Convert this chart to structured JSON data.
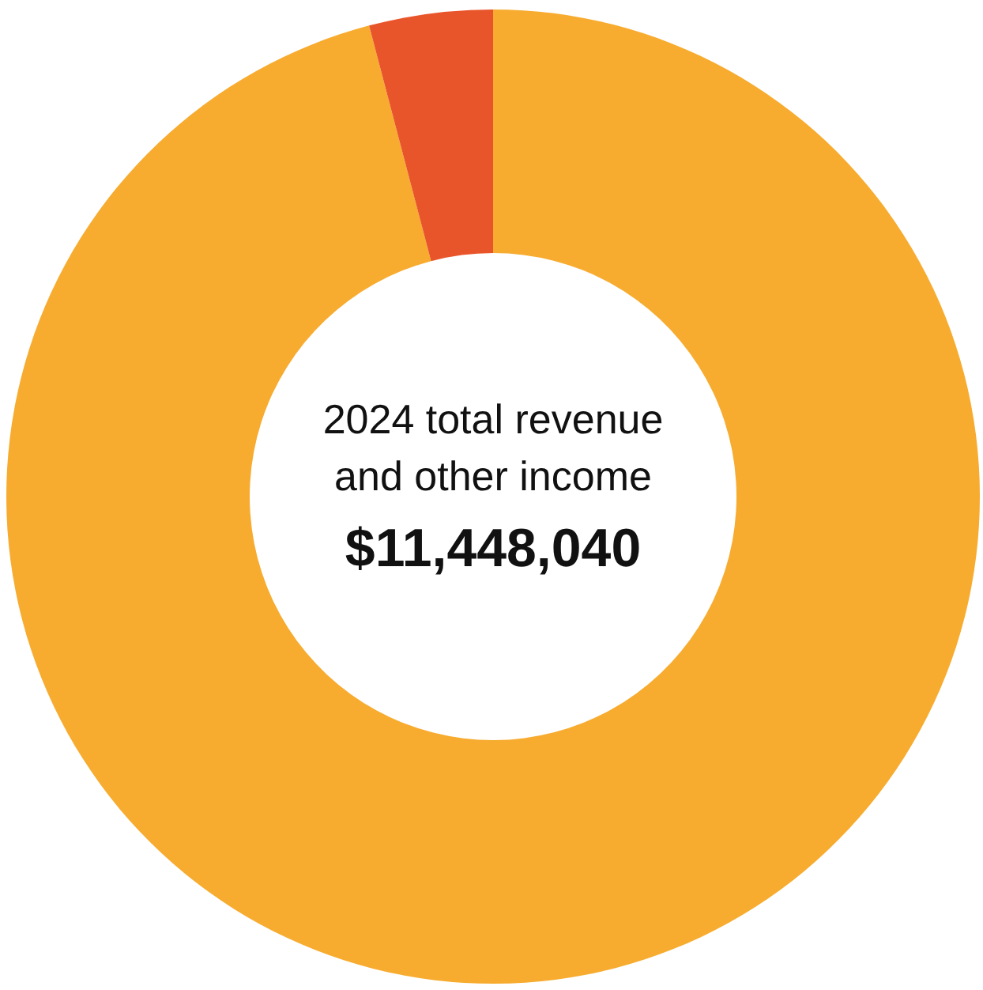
{
  "chart_data": {
    "type": "donut",
    "title": "2024 total revenue and other income",
    "subtitle": "$11,448,040",
    "categories": [
      null,
      null
    ],
    "values": [
      95.9,
      4.1
    ],
    "colors": [
      "#f7ac30",
      "#e9552a"
    ]
  }
}
